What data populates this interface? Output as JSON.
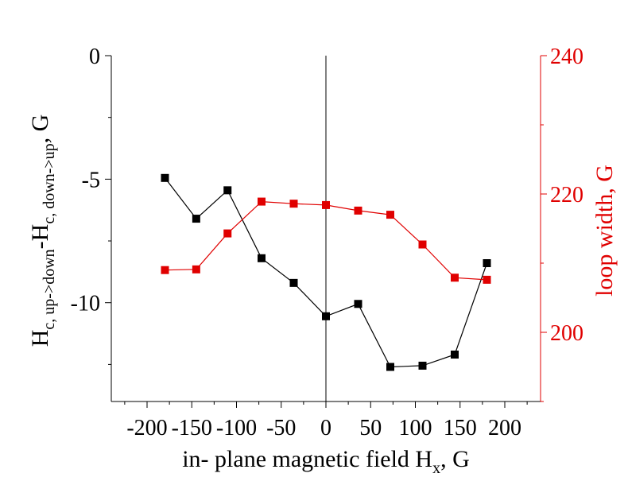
{
  "chart_data": {
    "type": "line",
    "xlabel": "in- plane magnetic field H",
    "xlabel_sub": "x",
    "xlabel_suffix": ", G",
    "ylabel_left": {
      "main1": "H",
      "sub1": "c, up->down",
      "main2": "-H",
      "sub2": "c, down->up",
      "suffix": ", G"
    },
    "ylabel_right": "loop width, G",
    "xlim": [
      -240,
      240
    ],
    "ylim_left": [
      -14,
      0
    ],
    "ylim_right": [
      190,
      240
    ],
    "x_ticks": [
      -200,
      -150,
      -100,
      -50,
      0,
      50,
      100,
      150,
      200
    ],
    "x_tick_labels": [
      "-200",
      "-150",
      "-100",
      "-50",
      "0",
      "50",
      "100",
      "150",
      "200"
    ],
    "y_left_ticks": [
      0,
      -5,
      -10
    ],
    "y_left_tick_labels": [
      "0",
      "-5",
      "-10"
    ],
    "y_right_ticks": [
      200,
      220,
      240
    ],
    "y_right_tick_labels": [
      "200",
      "220",
      "240"
    ],
    "vertical_line_x": 0,
    "series": [
      {
        "axis": "left",
        "color": "#000000",
        "x": [
          -180,
          -145,
          -110,
          -72,
          -36,
          0,
          36,
          72,
          108,
          144,
          180
        ],
        "y": [
          -4.95,
          -6.6,
          -5.45,
          -8.2,
          -9.2,
          -10.55,
          -10.05,
          -12.6,
          -12.55,
          -12.1,
          -8.4
        ]
      },
      {
        "axis": "right",
        "color": "#e00000",
        "x": [
          -180,
          -145,
          -110,
          -72,
          -36,
          0,
          36,
          72,
          108,
          144,
          180
        ],
        "y": [
          209.0,
          209.1,
          214.3,
          218.9,
          218.6,
          218.4,
          217.6,
          217.0,
          212.7,
          207.9,
          207.6
        ]
      }
    ],
    "grid": false,
    "legend": "none"
  }
}
